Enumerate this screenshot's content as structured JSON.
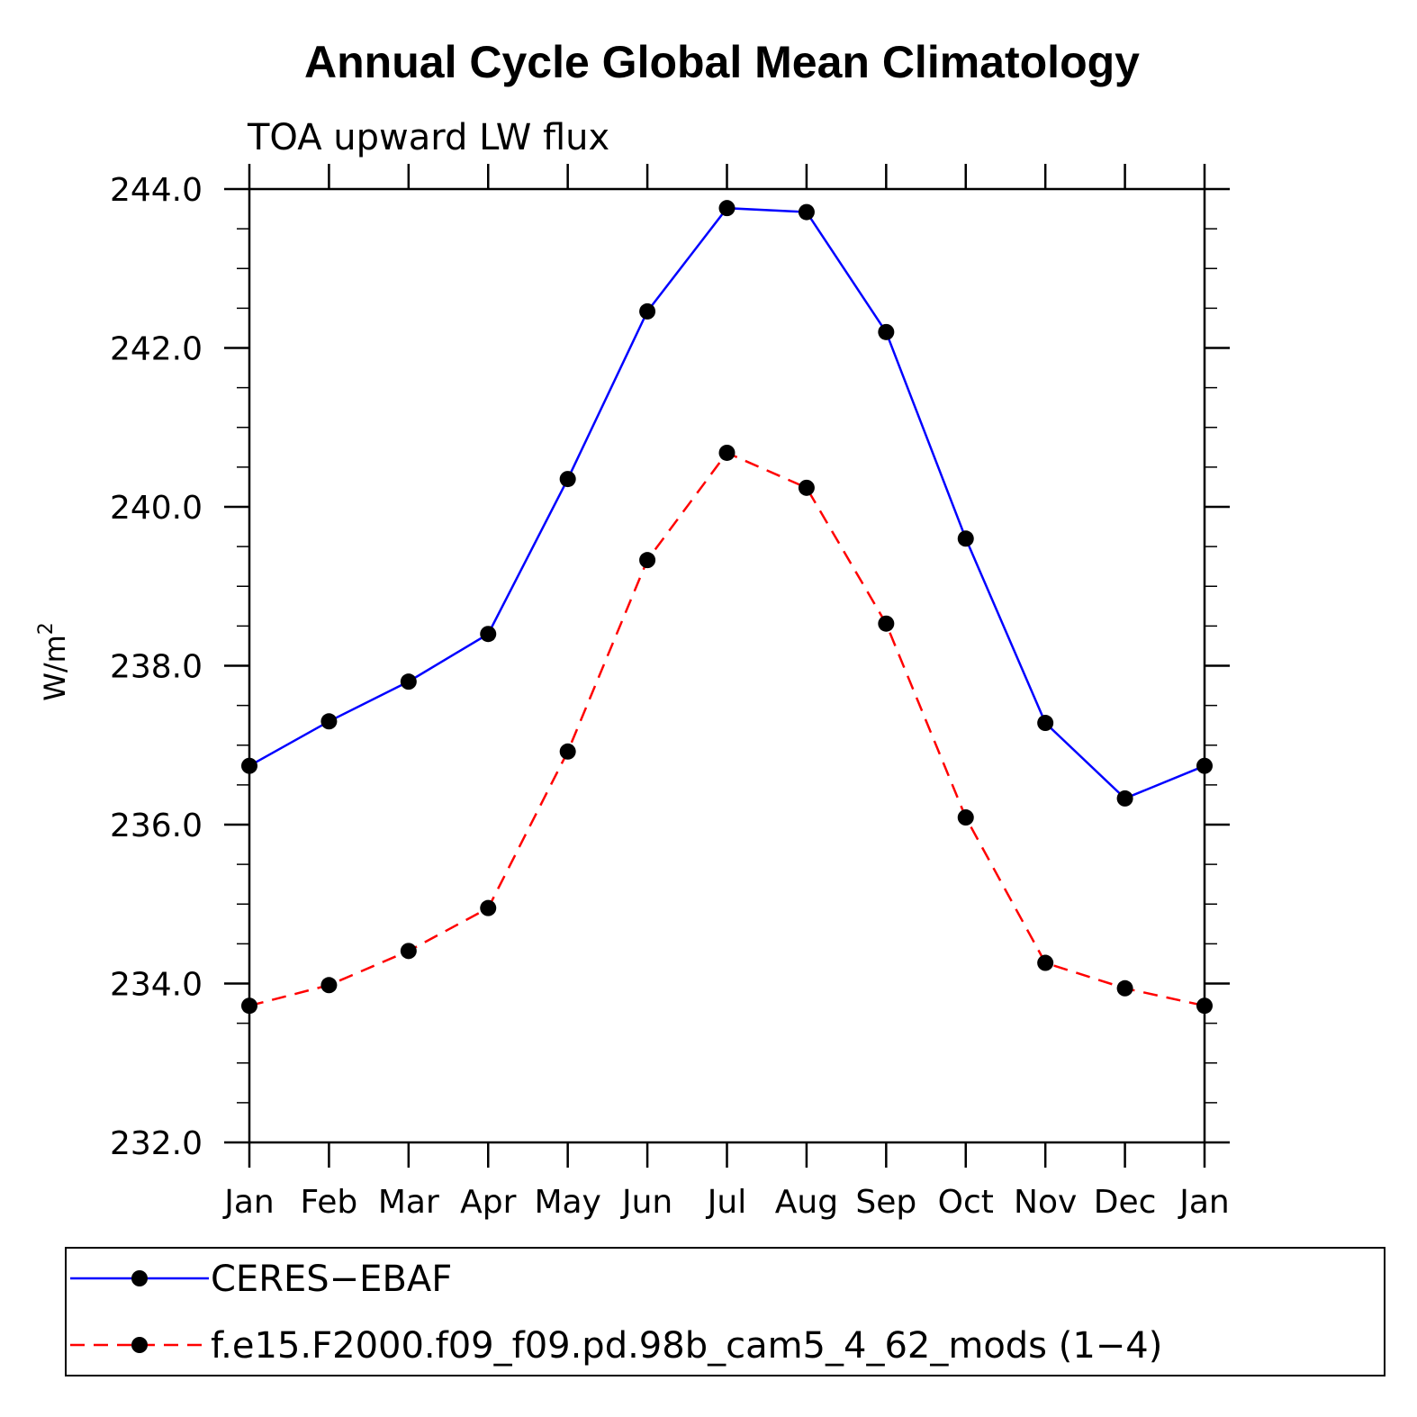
{
  "chart_data": {
    "type": "line",
    "title": "Annual Cycle Global Mean Climatology",
    "subtitle": "TOA upward LW flux",
    "ylabel": "W/m",
    "ylabel_sup": "2",
    "categories": [
      "Jan",
      "Feb",
      "Mar",
      "Apr",
      "May",
      "Jun",
      "Jul",
      "Aug",
      "Sep",
      "Oct",
      "Nov",
      "Dec",
      "Jan"
    ],
    "ylim": [
      232.0,
      244.0
    ],
    "yticks": [
      232.0,
      234.0,
      236.0,
      238.0,
      240.0,
      242.0,
      244.0
    ],
    "ytick_labels": [
      "232.0",
      "234.0",
      "236.0",
      "238.0",
      "240.0",
      "242.0",
      "244.0"
    ],
    "yminor_step": 0.5,
    "grid": false,
    "legend_position": "bottom",
    "series": [
      {
        "name": "CERES−EBAF",
        "color": "#0000ff",
        "dash": "solid",
        "marker_color": "#000000",
        "values": [
          236.74,
          237.3,
          237.8,
          238.4,
          240.35,
          242.46,
          243.76,
          243.71,
          242.2,
          239.6,
          237.28,
          236.33,
          236.74
        ]
      },
      {
        "name": "f.e15.F2000.f09_f09.pd.98b_cam5_4_62_mods (1−4)",
        "color": "#ff0000",
        "dash": "dashed",
        "marker_color": "#000000",
        "values": [
          233.72,
          233.98,
          234.41,
          234.95,
          236.92,
          239.33,
          240.68,
          240.24,
          238.53,
          236.09,
          234.26,
          233.94,
          233.72
        ]
      }
    ]
  }
}
